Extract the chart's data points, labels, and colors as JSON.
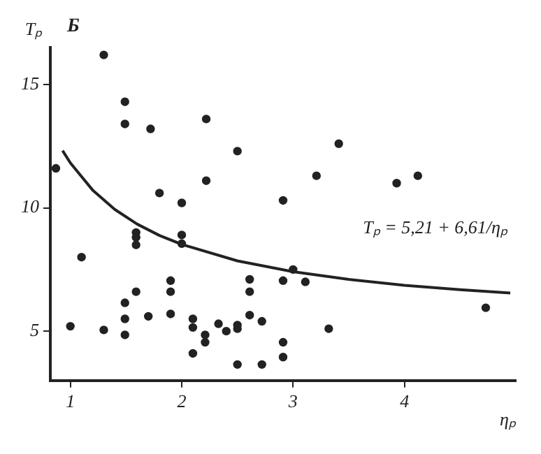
{
  "chart_data": {
    "type": "scatter",
    "xlabel": "ηₚ",
    "ylabel": "Tₚ",
    "annotations": [
      "Б",
      "Tₚ = 5,21 + 6,61/ηₚ"
    ],
    "series": [
      {
        "color": "#222222",
        "marker": "circle",
        "x": [
          1.3,
          1.49,
          1.49,
          1.72,
          2.22,
          2.5,
          0.87,
          2.22,
          1.8,
          2.0,
          2.91,
          3.41,
          3.21,
          3.93,
          4.12,
          1.0,
          1.1,
          1.3,
          1.49,
          1.49,
          1.49,
          1.59,
          1.59,
          1.59,
          1.59,
          1.7,
          1.9,
          1.9,
          1.9,
          2.0,
          2.0,
          2.1,
          2.1,
          2.1,
          2.21,
          2.21,
          2.33,
          2.4,
          2.5,
          2.5,
          2.5,
          2.61,
          2.61,
          2.61,
          2.72,
          2.72,
          2.91,
          2.91,
          2.91,
          3.0,
          3.11,
          3.32,
          4.73
        ],
        "values": [
          16.2,
          14.3,
          13.4,
          13.2,
          13.6,
          12.3,
          11.6,
          11.1,
          10.6,
          10.2,
          10.3,
          12.6,
          11.3,
          11.0,
          11.3,
          5.2,
          8.0,
          5.05,
          6.15,
          5.5,
          4.85,
          6.6,
          8.5,
          8.8,
          9.0,
          5.6,
          7.05,
          6.6,
          5.7,
          8.9,
          8.55,
          5.5,
          5.15,
          4.1,
          4.85,
          4.55,
          5.3,
          5.0,
          5.25,
          5.1,
          3.65,
          7.1,
          6.6,
          5.65,
          5.4,
          3.65,
          7.05,
          4.55,
          3.95,
          7.5,
          7.0,
          5.1,
          5.95
        ]
      },
      {
        "type": "line",
        "color": "#222222",
        "marker": "none",
        "line_style": "solid",
        "x": [
          0.93,
          1,
          1.2,
          1.4,
          1.6,
          1.8,
          2,
          2.5,
          3,
          3.5,
          4,
          4.5,
          4.95
        ],
        "values": [
          12.32,
          11.82,
          10.72,
          9.93,
          9.34,
          8.88,
          8.52,
          7.85,
          7.41,
          7.1,
          6.86,
          6.68,
          6.55
        ]
      }
    ],
    "xlim": [
      0.82,
      5.0
    ],
    "ylim": [
      3,
      16.5
    ],
    "xticks": [
      1,
      2,
      3,
      4
    ],
    "yticks": [
      5,
      10,
      15
    ],
    "grid": false,
    "legend": false
  }
}
